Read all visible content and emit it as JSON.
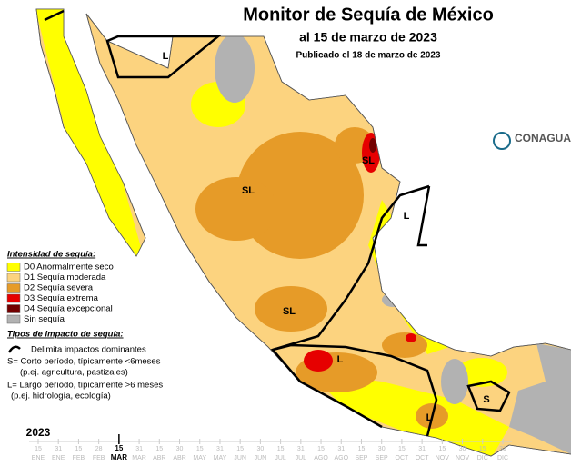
{
  "header": {
    "title": "Monitor de Sequía de México",
    "subtitle": "al 15 de marzo de 2023",
    "published": "Publicado el 18 de marzo de 2023"
  },
  "logo": "CONAGUA",
  "legend": {
    "title": "Intensidad de sequía:",
    "items": [
      {
        "label": "D0 Anormalmente seco",
        "color": "#ffff00"
      },
      {
        "label": "D1 Sequía moderada",
        "color": "#fcd37f"
      },
      {
        "label": "D2 Sequía severa",
        "color": "#e69b28"
      },
      {
        "label": "D3 Sequía extrema",
        "color": "#e60000"
      },
      {
        "label": "D4 Sequía excepcional",
        "color": "#730000"
      },
      {
        "label": "Sin sequía",
        "color": "#b2b2b2"
      }
    ]
  },
  "impacts": {
    "title": "Tipos de impacto de sequía:",
    "boundary": "Delimita impactos dominantes",
    "short": "S= Corto período, típicamente <6meses",
    "short_example": "(p.ej. agricultura, pastizales)",
    "long": "L= Largo período, típicamente >6 meses",
    "long_example": "(p.ej. hidrología, ecología)"
  },
  "map_labels": [
    "L",
    "SL",
    "SL",
    "L",
    "SL",
    "L",
    "L",
    "S"
  ],
  "timeline": {
    "year": "2023",
    "current": 4,
    "ticks": [
      {
        "day": "15",
        "month": "ENE"
      },
      {
        "day": "31",
        "month": "ENE"
      },
      {
        "day": "15",
        "month": "FEB"
      },
      {
        "day": "28",
        "month": "FEB"
      },
      {
        "day": "15",
        "month": "MAR"
      },
      {
        "day": "31",
        "month": "MAR"
      },
      {
        "day": "15",
        "month": "ABR"
      },
      {
        "day": "30",
        "month": "ABR"
      },
      {
        "day": "15",
        "month": "MAY"
      },
      {
        "day": "31",
        "month": "MAY"
      },
      {
        "day": "15",
        "month": "JUN"
      },
      {
        "day": "30",
        "month": "JUN"
      },
      {
        "day": "15",
        "month": "JUL"
      },
      {
        "day": "31",
        "month": "JUL"
      },
      {
        "day": "15",
        "month": "AGO"
      },
      {
        "day": "31",
        "month": "AGO"
      },
      {
        "day": "15",
        "month": "SEP"
      },
      {
        "day": "30",
        "month": "SEP"
      },
      {
        "day": "15",
        "month": "OCT"
      },
      {
        "day": "31",
        "month": "OCT"
      },
      {
        "day": "15",
        "month": "NOV"
      },
      {
        "day": "30",
        "month": "NOV"
      },
      {
        "day": "15",
        "month": "DIC"
      },
      {
        "day": "31",
        "month": "DIC"
      }
    ]
  }
}
